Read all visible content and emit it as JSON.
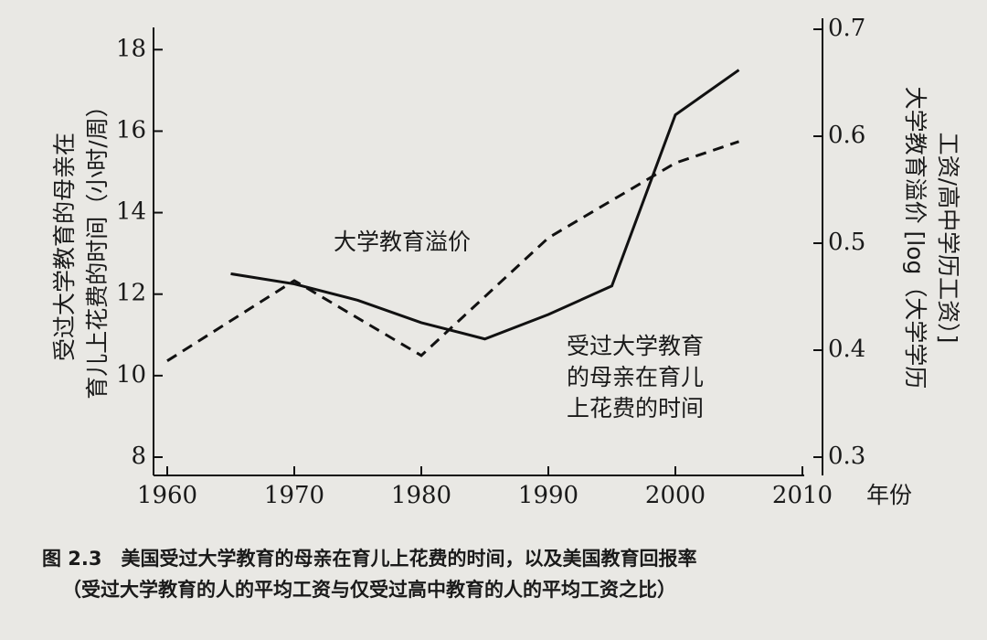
{
  "chart_data": {
    "type": "line",
    "y_label_lines": [
      "受过大学教育的母亲在",
      "育儿上花费的时间（小时/周）"
    ],
    "y2_label_lines": [
      "大学教育溢价 [log（大学学历",
      "工资/高中学历工资）]"
    ],
    "x_label": "年份",
    "annotations": [
      {
        "lines": [
          "大学教育溢价"
        ]
      },
      {
        "lines": [
          "受过大学教育",
          "的母亲在育儿",
          "上花费的时间"
        ]
      }
    ],
    "caption_lines": [
      "图 2.3　美国受过大学教育的母亲在育儿上花费的时间，以及美国教育回报率",
      "（受过大学教育的人的平均工资与仅受过高中教育的人的平均工资之比）"
    ],
    "xlim": [
      1960,
      2010
    ],
    "xticks": [
      1960,
      1970,
      1980,
      1990,
      2000,
      2010
    ],
    "ylim": [
      8,
      18.5
    ],
    "yticks": [
      8,
      10,
      12,
      14,
      16,
      18
    ],
    "y2lim": [
      0.3,
      0.7
    ],
    "y2ticks": [
      0.3,
      0.4,
      0.5,
      0.6,
      0.7
    ],
    "series": [
      {
        "color": "#111111",
        "dash": false,
        "axis": "y",
        "x": [
          1965,
          1970,
          1975,
          1980,
          1985,
          1990,
          1995,
          2000,
          2005
        ],
        "values": [
          12.5,
          12.25,
          11.85,
          11.3,
          10.9,
          11.5,
          12.2,
          16.4,
          17.5
        ]
      },
      {
        "color": "#111111",
        "dash": true,
        "axis": "y2",
        "x": [
          1960,
          1970,
          1980,
          1990,
          2000,
          2005
        ],
        "values": [
          0.39,
          0.465,
          0.395,
          0.505,
          0.575,
          0.595
        ]
      }
    ]
  }
}
